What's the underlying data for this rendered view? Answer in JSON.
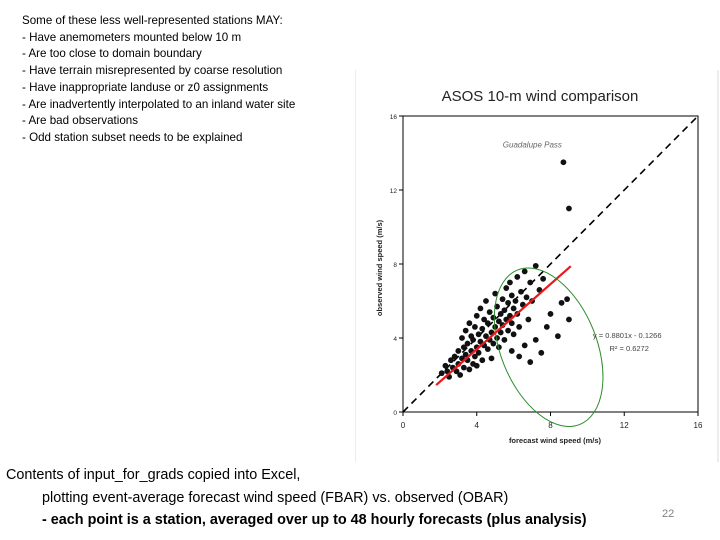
{
  "bullets": {
    "heading": "Some of these less well-represented stations MAY:",
    "items": [
      "Have anemometers mounted below 10 m",
      "Are too close to domain boundary",
      "Have terrain misrepresented by coarse resolution",
      "Have inappropriate landuse or z0 assignments",
      "Are inadvertently interpolated to an inland water site",
      "Are bad observations",
      "Odd station subset needs to be explained"
    ]
  },
  "chart_data": {
    "type": "scatter",
    "title": "ASOS 10-m wind comparison",
    "xlabel": "forecast wind speed (m/s)",
    "ylabel": "observed wind speed (m/s)",
    "xlim": [
      0,
      16
    ],
    "ylim": [
      0,
      16
    ],
    "xticks": [
      "0",
      "4",
      "8",
      "12",
      "16"
    ],
    "yticks": [
      "0",
      "4",
      "8",
      "12",
      "16"
    ],
    "grid": false,
    "annotation": "Guadalupe Pass",
    "equation": "y = 0.8801x - 0.1266",
    "r_squared": "R² = 0.6272",
    "trendline": {
      "slope": 0.8801,
      "intercept": -0.1266,
      "x_range": [
        1.8,
        9.1
      ],
      "color": "#e8191b"
    },
    "one_to_one_line": true,
    "outlier_ellipse": {
      "cx": 7.9,
      "cy": 3.5,
      "rx": 2.6,
      "ry": 4.5,
      "angle_deg": -22,
      "color": "#2d8a2d"
    },
    "points": [
      [
        2.1,
        2.1
      ],
      [
        2.3,
        2.5
      ],
      [
        2.4,
        2.2
      ],
      [
        2.5,
        1.9
      ],
      [
        2.6,
        2.8
      ],
      [
        2.7,
        2.4
      ],
      [
        2.8,
        3.0
      ],
      [
        2.9,
        2.2
      ],
      [
        3.0,
        2.6
      ],
      [
        3.0,
        3.3
      ],
      [
        3.1,
        2.0
      ],
      [
        3.2,
        2.9
      ],
      [
        3.2,
        4.0
      ],
      [
        3.3,
        3.5
      ],
      [
        3.3,
        2.4
      ],
      [
        3.4,
        3.1
      ],
      [
        3.4,
        4.4
      ],
      [
        3.5,
        2.8
      ],
      [
        3.5,
        3.7
      ],
      [
        3.6,
        2.3
      ],
      [
        3.6,
        4.8
      ],
      [
        3.7,
        3.3
      ],
      [
        3.7,
        4.1
      ],
      [
        3.8,
        2.6
      ],
      [
        3.8,
        3.9
      ],
      [
        3.9,
        3.0
      ],
      [
        3.9,
        4.6
      ],
      [
        4.0,
        3.5
      ],
      [
        4.0,
        5.2
      ],
      [
        4.0,
        2.5
      ],
      [
        4.1,
        4.2
      ],
      [
        4.1,
        3.2
      ],
      [
        4.2,
        3.8
      ],
      [
        4.2,
        5.6
      ],
      [
        4.3,
        2.8
      ],
      [
        4.3,
        4.5
      ],
      [
        4.4,
        3.6
      ],
      [
        4.4,
        5.0
      ],
      [
        4.5,
        4.1
      ],
      [
        4.5,
        6.0
      ],
      [
        4.6,
        3.4
      ],
      [
        4.6,
        4.8
      ],
      [
        4.7,
        3.9
      ],
      [
        4.7,
        5.4
      ],
      [
        4.8,
        4.3
      ],
      [
        4.8,
        2.9
      ],
      [
        4.9,
        5.1
      ],
      [
        4.9,
        3.7
      ],
      [
        5.0,
        4.6
      ],
      [
        5.0,
        6.4
      ],
      [
        5.1,
        4.0
      ],
      [
        5.1,
        5.7
      ],
      [
        5.2,
        4.9
      ],
      [
        5.2,
        3.5
      ],
      [
        5.3,
        5.3
      ],
      [
        5.3,
        4.3
      ],
      [
        5.4,
        6.1
      ],
      [
        5.4,
        4.7
      ],
      [
        5.5,
        5.5
      ],
      [
        5.5,
        3.9
      ],
      [
        5.6,
        6.7
      ],
      [
        5.6,
        5.0
      ],
      [
        5.7,
        4.4
      ],
      [
        5.7,
        5.9
      ],
      [
        5.8,
        5.2
      ],
      [
        5.8,
        7.0
      ],
      [
        5.9,
        4.8
      ],
      [
        5.9,
        6.3
      ],
      [
        6.0,
        5.6
      ],
      [
        6.0,
        4.2
      ],
      [
        6.1,
        6.0
      ],
      [
        6.2,
        5.3
      ],
      [
        6.2,
        7.3
      ],
      [
        6.3,
        4.6
      ],
      [
        6.4,
        6.5
      ],
      [
        6.5,
        5.8
      ],
      [
        6.6,
        7.6
      ],
      [
        6.7,
        6.2
      ],
      [
        6.8,
        5.0
      ],
      [
        6.9,
        7.0
      ],
      [
        7.0,
        6.0
      ],
      [
        7.2,
        7.9
      ],
      [
        7.4,
        6.6
      ],
      [
        7.6,
        7.2
      ],
      [
        5.9,
        3.3
      ],
      [
        6.3,
        3.0
      ],
      [
        6.6,
        3.6
      ],
      [
        6.9,
        2.7
      ],
      [
        7.2,
        3.9
      ],
      [
        7.5,
        3.2
      ],
      [
        7.8,
        4.6
      ],
      [
        8.0,
        5.3
      ],
      [
        8.4,
        4.1
      ],
      [
        8.6,
        5.9
      ],
      [
        8.9,
        6.1
      ],
      [
        9.0,
        5.0
      ],
      [
        8.7,
        13.5
      ],
      [
        9.0,
        11.0
      ]
    ]
  },
  "caption": {
    "line1": "Contents of input_for_grads copied into Excel,",
    "line2": "plotting event-average forecast wind speed (FBAR) vs. observed (OBAR)",
    "line3": "- each point is a station, averaged over up to 48 hourly forecasts (plus analysis)"
  },
  "slide_number": "22"
}
